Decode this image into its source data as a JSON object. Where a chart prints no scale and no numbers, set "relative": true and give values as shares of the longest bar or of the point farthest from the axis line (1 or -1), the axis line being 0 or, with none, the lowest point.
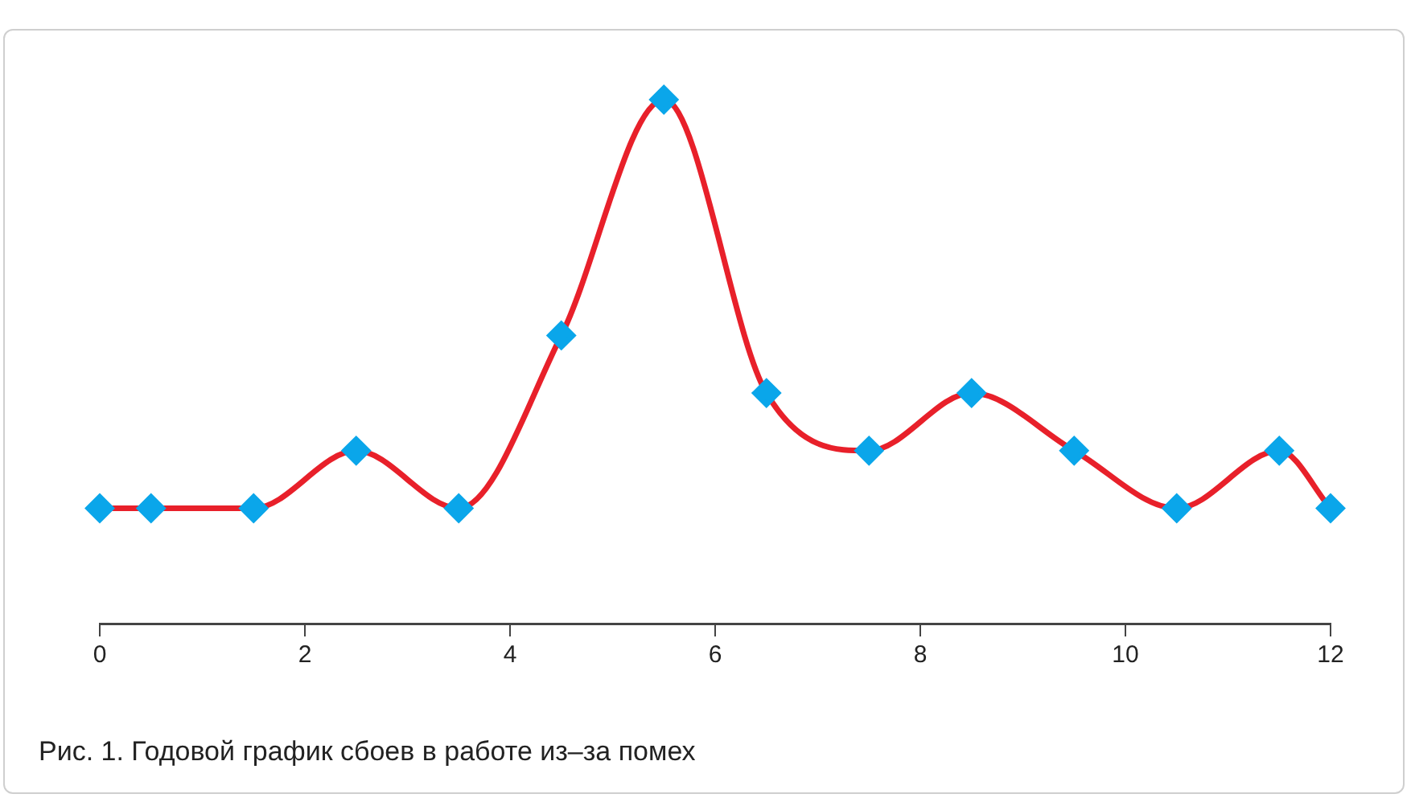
{
  "chart_data": {
    "type": "line",
    "title": "Рис. 1. Годовой график сбоев в работе из–за помех",
    "relative": true,
    "x": [
      0,
      0.5,
      1.5,
      2.5,
      3.5,
      4.5,
      5.5,
      6.5,
      7.5,
      8.5,
      9.5,
      10.5,
      11.5,
      12
    ],
    "series": [
      {
        "color": "#e8202a",
        "values": [
          0.22,
          0.22,
          0.22,
          0.33,
          0.22,
          0.55,
          1,
          0.44,
          0.33,
          0.44,
          0.33,
          0.22,
          0.33,
          0.22
        ]
      }
    ],
    "xlim": [
      0,
      12
    ],
    "xticks": [
      0,
      2,
      4,
      6,
      8,
      10,
      12
    ],
    "marker": "diamond",
    "grid": false,
    "legend": false
  }
}
